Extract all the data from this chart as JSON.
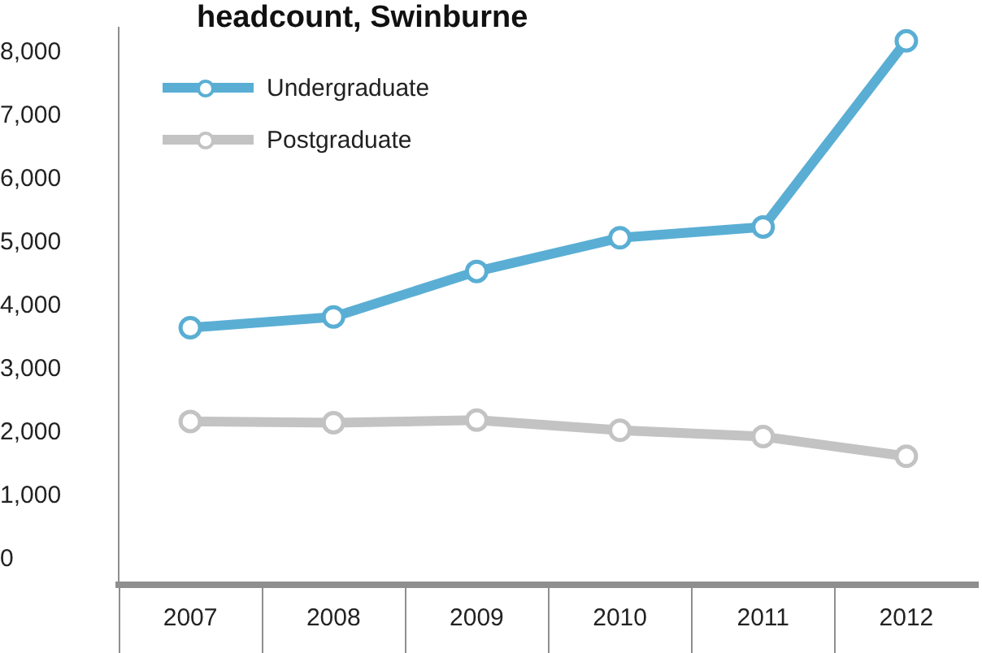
{
  "chart_data": {
    "type": "line",
    "title": "headcount, Swinburne",
    "categories": [
      "2007",
      "2008",
      "2009",
      "2010",
      "2011",
      "2012"
    ],
    "series": [
      {
        "name": "Undergraduate",
        "color": "#5aaed4",
        "values": [
          3660,
          3830,
          4550,
          5080,
          5250,
          8190
        ]
      },
      {
        "name": "Postgraduate",
        "color": "#c3c3c3",
        "values": [
          2180,
          2160,
          2200,
          2040,
          1940,
          1630
        ]
      }
    ],
    "ylim": [
      -400,
      8400
    ],
    "yticks": [
      {
        "value": 0,
        "label": "0"
      },
      {
        "value": 1000,
        "label": "1,000"
      },
      {
        "value": 2000,
        "label": "2,000"
      },
      {
        "value": 3000,
        "label": "3,000"
      },
      {
        "value": 4000,
        "label": "4,000"
      },
      {
        "value": 5000,
        "label": "5,000"
      },
      {
        "value": 6000,
        "label": "6,000"
      },
      {
        "value": 7000,
        "label": "7,000"
      },
      {
        "value": 8000,
        "label": "8,000"
      }
    ],
    "grid": false,
    "legend": "top left",
    "marker": "circle",
    "line_style": "solid"
  }
}
